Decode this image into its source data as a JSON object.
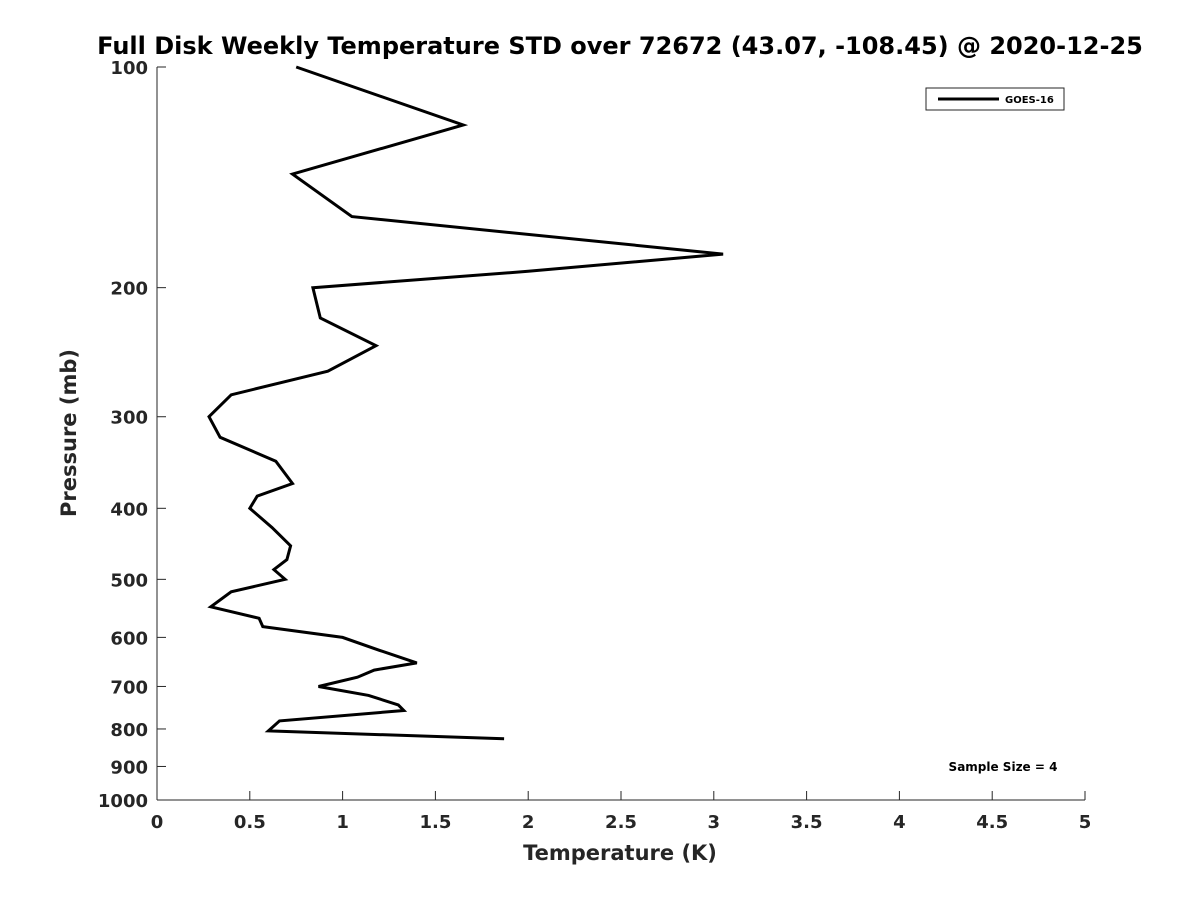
{
  "chart_data": {
    "type": "line",
    "title": "Full Disk Weekly Temperature STD over 72672 (43.07, -108.45) @ 2020-12-25",
    "xlabel": "Temperature (K)",
    "ylabel": "Pressure (mb)",
    "xlim": [
      0,
      5
    ],
    "ylim": [
      100,
      1000
    ],
    "y_scale": "log",
    "y_reversed": true,
    "grid": false,
    "legend_position": "top-right",
    "x_ticks": [
      0,
      0.5,
      1,
      1.5,
      2,
      2.5,
      3,
      3.5,
      4,
      4.5,
      5
    ],
    "x_tick_labels": [
      "0",
      "0.5",
      "1",
      "1.5",
      "2",
      "2.5",
      "3",
      "3.5",
      "4",
      "4.5",
      "5"
    ],
    "y_ticks": [
      100,
      200,
      300,
      400,
      500,
      600,
      700,
      800,
      900,
      1000
    ],
    "y_tick_labels": [
      "100",
      "200",
      "300",
      "400",
      "500",
      "600",
      "700",
      "800",
      "900",
      "1000"
    ],
    "annotation": "Sample Size = 4",
    "series": [
      {
        "name": "GOES-16",
        "color": "#000000",
        "points": [
          {
            "x": 0.75,
            "y": 100
          },
          {
            "x": 1.65,
            "y": 120
          },
          {
            "x": 0.73,
            "y": 140
          },
          {
            "x": 1.05,
            "y": 160
          },
          {
            "x": 3.05,
            "y": 180
          },
          {
            "x": 2.0,
            "y": 190
          },
          {
            "x": 0.84,
            "y": 200
          },
          {
            "x": 0.88,
            "y": 220
          },
          {
            "x": 1.18,
            "y": 240
          },
          {
            "x": 0.92,
            "y": 260
          },
          {
            "x": 0.4,
            "y": 280
          },
          {
            "x": 0.28,
            "y": 300
          },
          {
            "x": 0.34,
            "y": 320
          },
          {
            "x": 0.64,
            "y": 345
          },
          {
            "x": 0.73,
            "y": 370
          },
          {
            "x": 0.54,
            "y": 385
          },
          {
            "x": 0.5,
            "y": 400
          },
          {
            "x": 0.62,
            "y": 425
          },
          {
            "x": 0.72,
            "y": 450
          },
          {
            "x": 0.7,
            "y": 470
          },
          {
            "x": 0.63,
            "y": 485
          },
          {
            "x": 0.69,
            "y": 500
          },
          {
            "x": 0.4,
            "y": 520
          },
          {
            "x": 0.29,
            "y": 545
          },
          {
            "x": 0.55,
            "y": 565
          },
          {
            "x": 0.57,
            "y": 580
          },
          {
            "x": 1.0,
            "y": 600
          },
          {
            "x": 1.2,
            "y": 625
          },
          {
            "x": 1.4,
            "y": 650
          },
          {
            "x": 1.17,
            "y": 665
          },
          {
            "x": 1.08,
            "y": 680
          },
          {
            "x": 0.87,
            "y": 700
          },
          {
            "x": 1.14,
            "y": 720
          },
          {
            "x": 1.3,
            "y": 742
          },
          {
            "x": 1.33,
            "y": 755
          },
          {
            "x": 0.66,
            "y": 780
          },
          {
            "x": 0.6,
            "y": 805
          },
          {
            "x": 1.87,
            "y": 825
          }
        ]
      }
    ]
  }
}
